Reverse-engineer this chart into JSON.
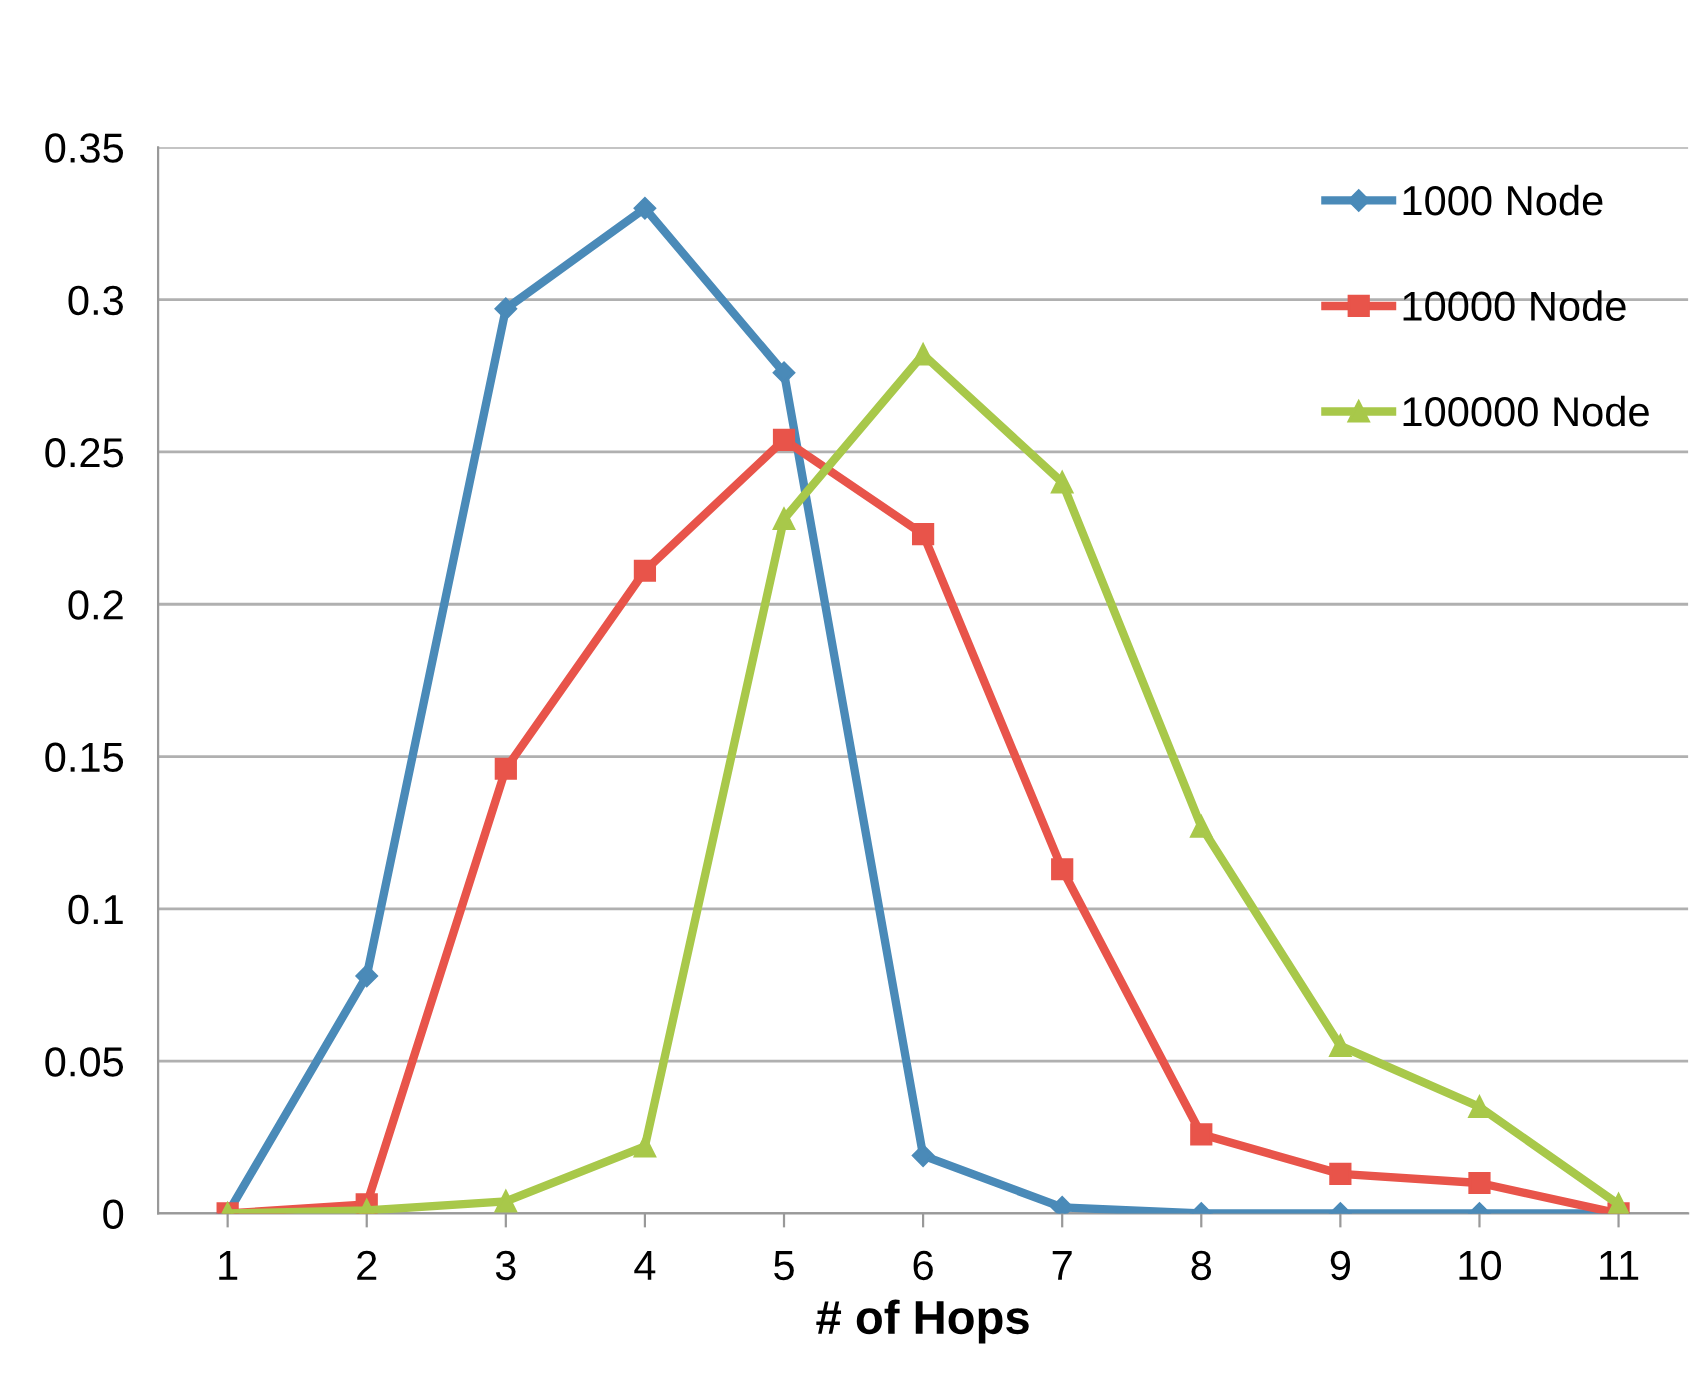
{
  "chart_data": {
    "type": "line",
    "xlabel": "# of Hops",
    "categories": [
      "1",
      "2",
      "3",
      "4",
      "5",
      "6",
      "7",
      "8",
      "9",
      "10",
      "11"
    ],
    "series": [
      {
        "name": "1000 Node",
        "color": "#4a8ab8",
        "marker": "diamond",
        "values": [
          0,
          0.078,
          0.297,
          0.33,
          0.276,
          0.019,
          0.002,
          0,
          0,
          0,
          0
        ]
      },
      {
        "name": "10000 Node",
        "color": "#e8544a",
        "marker": "square",
        "values": [
          0,
          0.003,
          0.146,
          0.211,
          0.254,
          0.223,
          0.113,
          0.026,
          0.013,
          0.01,
          0
        ]
      },
      {
        "name": "100000 Node",
        "color": "#a8c84a",
        "marker": "triangle",
        "values": [
          0,
          0.001,
          0.004,
          0.022,
          0.228,
          0.282,
          0.24,
          0.127,
          0.055,
          0.035,
          0.003
        ]
      }
    ],
    "ylim": [
      0,
      0.35
    ],
    "yticks": [
      {
        "value": 0,
        "label": "0"
      },
      0.05,
      0.1,
      0.15,
      0.2,
      0.25,
      0.3,
      0.35
    ],
    "grid": "y",
    "legend": "top right"
  }
}
